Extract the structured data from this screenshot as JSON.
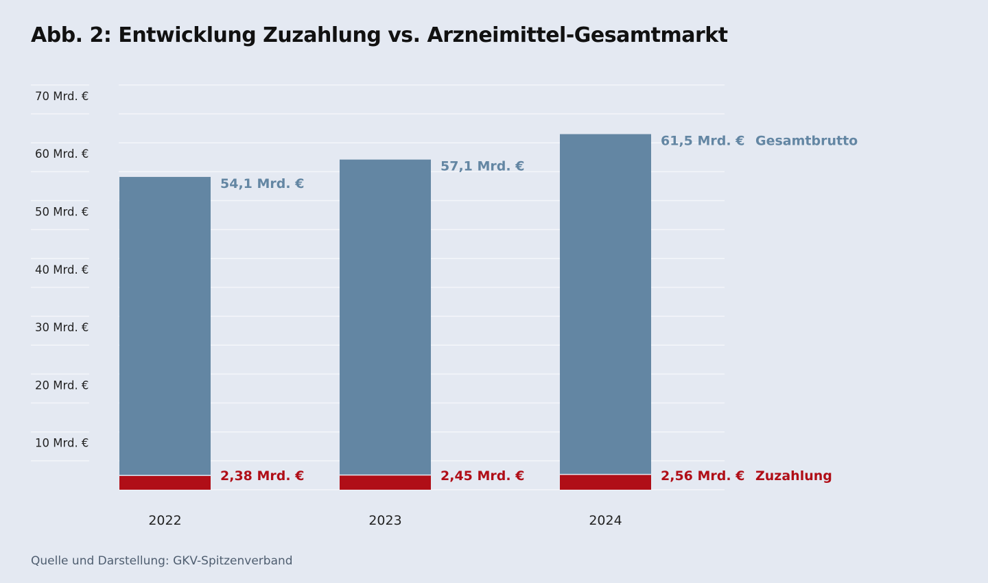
{
  "chart_data": {
    "type": "bar",
    "stacked": true,
    "title": "Abb. 2: Entwicklung Zuzahlung vs. Arzneimittel-Gesamtmarkt",
    "categories": [
      "2022",
      "2023",
      "2024"
    ],
    "series": [
      {
        "name": "Gesamtbrutto",
        "values": [
          54.1,
          57.1,
          61.5
        ],
        "labels": [
          "54,1 Mrd. €",
          "57,1 Mrd. €",
          "61,5 Mrd. €"
        ],
        "color": "#6386a3"
      },
      {
        "name": "Zuzahlung",
        "values": [
          2.38,
          2.45,
          2.56
        ],
        "labels": [
          "2,38 Mrd. €",
          "2,45 Mrd. €",
          "2,56 Mrd. €"
        ],
        "color": "#b00e17"
      }
    ],
    "yticks": [
      10,
      20,
      30,
      40,
      50,
      60,
      70
    ],
    "ytick_labels": [
      "10 Mrd. €",
      "20 Mrd. €",
      "30 Mrd. €",
      "40 Mrd. €",
      "50 Mrd. €",
      "60 Mrd. €",
      "70 Mrd. €"
    ],
    "ylim": [
      0,
      70
    ],
    "grid": true,
    "legend_placement": "right (inline labels)",
    "xlabel": "",
    "ylabel": ""
  },
  "source": "Quelle und Darstellung: GKV-Spitzenverband"
}
